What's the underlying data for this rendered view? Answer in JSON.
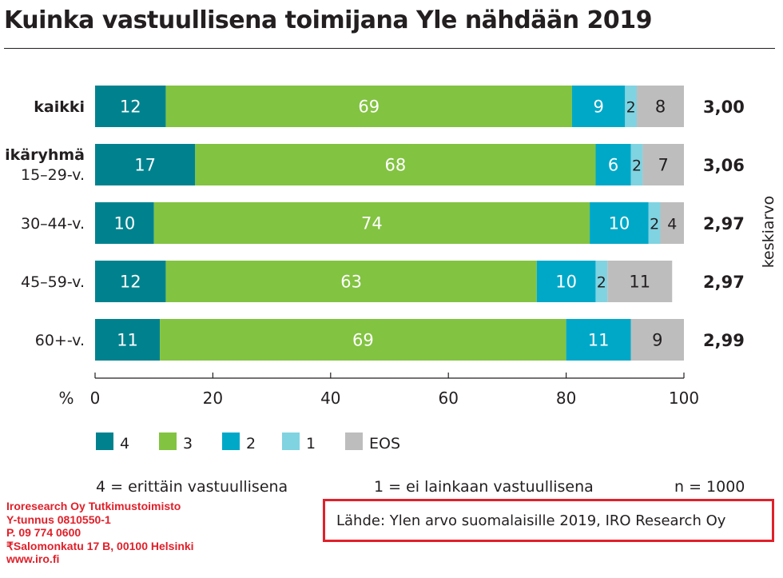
{
  "title": "Kuinka vastuullisena toimijana Yle nähdään 2019",
  "chart_data": {
    "type": "bar",
    "orientation": "horizontal",
    "stacked": true,
    "categories": [
      "kaikki",
      "15–29-v.",
      "30–44-v.",
      "45–59-v.",
      "60+-v."
    ],
    "group_label": "ikäryhmä",
    "series": [
      {
        "name": "4",
        "color": "#00828e",
        "values": [
          12,
          17,
          10,
          12,
          11
        ]
      },
      {
        "name": "3",
        "color": "#82c341",
        "values": [
          69,
          68,
          74,
          63,
          69
        ]
      },
      {
        "name": "2",
        "color": "#00a8c8",
        "values": [
          9,
          6,
          10,
          10,
          11
        ]
      },
      {
        "name": "1",
        "color": "#80d3e1",
        "values": [
          2,
          2,
          2,
          2,
          null
        ]
      },
      {
        "name": "EOS",
        "color": "#bdbdbd",
        "values": [
          8,
          7,
          4,
          11,
          9
        ]
      }
    ],
    "keskiarvo_label": "keskiarvo",
    "keskiarvo": [
      "3,00",
      "3,06",
      "2,97",
      "2,97",
      "2,99"
    ],
    "xlabel": "%",
    "xlim": [
      0,
      100
    ],
    "xticks": [
      0,
      20,
      40,
      60,
      80,
      100
    ],
    "legend_position": "bottom-left"
  },
  "notes": {
    "scale_high": "4 = erittäin vastuullisena",
    "scale_low": "1 = ei lainkaan vastuullisena",
    "sample": "n = 1000"
  },
  "company": {
    "name": "Iroresearch Oy Tutkimustoimisto",
    "ytunnus": "Y-tunnus 0810550-1",
    "phone": "P. 09 774 0600",
    "address": "₹Salomonkatu 17 B, 00100 Helsinki",
    "web": "www.iro.fi"
  },
  "source": "Lähde: Ylen arvo suomalaisille 2019, IRO Research Oy"
}
